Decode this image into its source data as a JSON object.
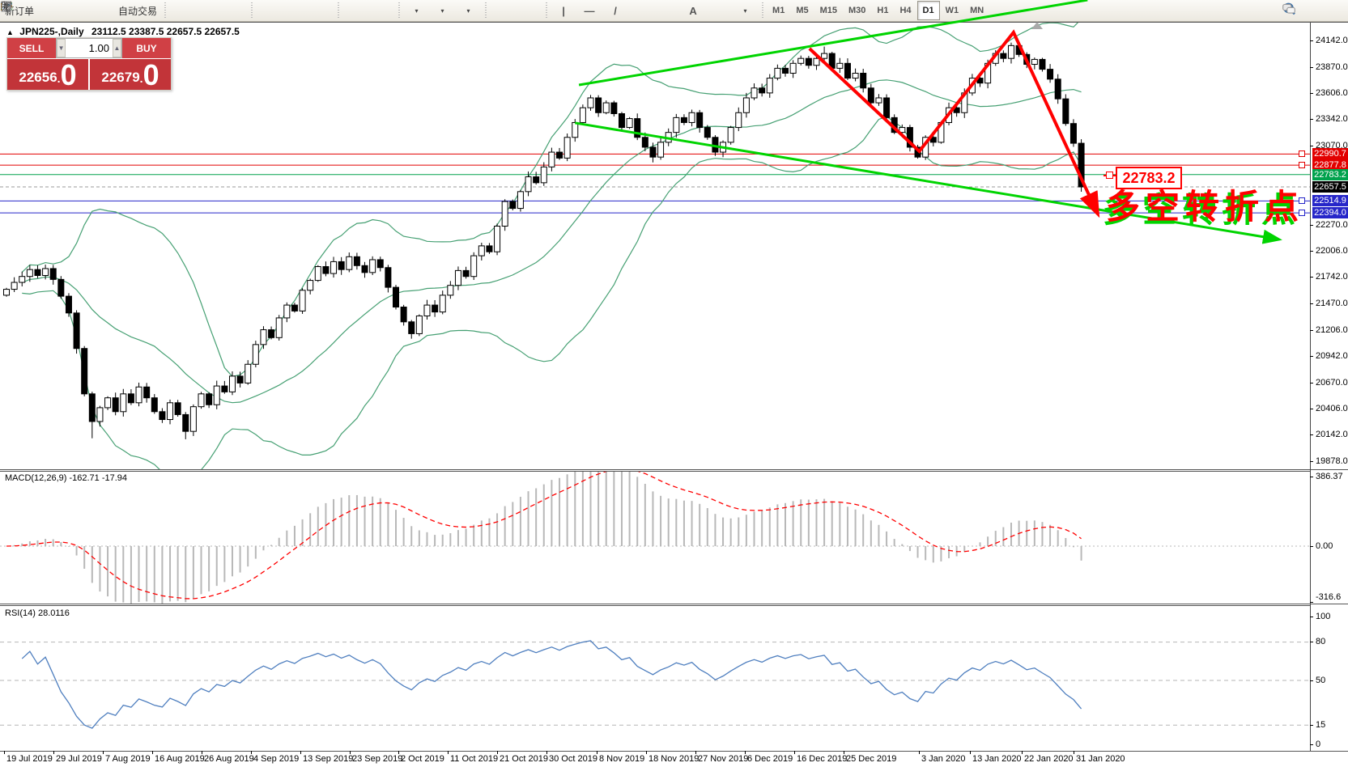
{
  "toolbar": {
    "items": [
      {
        "name": "new-order-button",
        "icon": "new-order",
        "label": "新订单"
      },
      {
        "name": "filter-button",
        "icon": "filter"
      },
      {
        "name": "market-window-button",
        "icon": "window"
      },
      {
        "name": "signal-button",
        "icon": "signal"
      },
      {
        "name": "auto-trading-button",
        "icon": "folder",
        "label": "自动交易"
      },
      {
        "sep": true
      },
      {
        "name": "bar-chart-button",
        "icon": "bars"
      },
      {
        "name": "candle-chart-button",
        "icon": "candles"
      },
      {
        "name": "line-chart-button",
        "icon": "linechart"
      },
      {
        "sep": true
      },
      {
        "name": "zoom-in-button",
        "icon": "zoom-in"
      },
      {
        "name": "zoom-out-button",
        "icon": "zoom-out"
      },
      {
        "name": "tile-windows-button",
        "icon": "tile"
      },
      {
        "sep": true
      },
      {
        "name": "chart-shift-button",
        "icon": "shift"
      },
      {
        "name": "auto-scroll-button",
        "icon": "autoscroll"
      },
      {
        "sep": true
      },
      {
        "name": "indicators-button",
        "icon": "indicators",
        "caret": true
      },
      {
        "name": "periods-button",
        "icon": "clock",
        "caret": true
      },
      {
        "name": "templates-button",
        "icon": "template",
        "caret": true
      },
      {
        "sep": true
      },
      {
        "name": "cursor-button",
        "icon": "cursor"
      },
      {
        "name": "crosshair-button",
        "icon": "crosshair"
      },
      {
        "sep": true
      },
      {
        "name": "vertical-line-button",
        "glyph": "|"
      },
      {
        "name": "horizontal-line-button",
        "glyph": "—"
      },
      {
        "name": "trendline-button",
        "glyph": "/"
      },
      {
        "name": "channel-button",
        "icon": "channel"
      },
      {
        "name": "fibonacci-button",
        "icon": "fibo"
      },
      {
        "name": "text-button",
        "glyph": "A"
      },
      {
        "name": "text-label-button",
        "icon": "label-t"
      },
      {
        "name": "shapes-button",
        "icon": "shapes",
        "caret": true
      },
      {
        "sep": true
      }
    ],
    "timeframes": [
      "M1",
      "M5",
      "M15",
      "M30",
      "H1",
      "H4",
      "D1",
      "W1",
      "MN"
    ],
    "active_timeframe": "D1"
  },
  "chart_header": {
    "collapse": "▲",
    "symbol_period": "JPN225-,Daily",
    "ohlc": "23112.5 23387.5 22657.5 22657.5"
  },
  "trade_panel": {
    "sell_label": "SELL",
    "buy_label": "BUY",
    "volume": "1.00",
    "sell_price_main": "22656",
    "sell_price_big": "0",
    "buy_price_main": "22679",
    "buy_price_big": "0"
  },
  "annotations": {
    "price_label": "22783.2",
    "turning_point_text": "多空转折点"
  },
  "macd_pane": {
    "label": "MACD(12,26,9) -162.71 -17.94",
    "ticks": [
      {
        "v": 386.37,
        "t": "386.37"
      },
      {
        "v": 0,
        "t": "0.00"
      },
      {
        "v": -316.6,
        "t": "-316.6"
      }
    ]
  },
  "rsi_pane": {
    "label": "RSI(14) 28.0116",
    "ticks": [
      {
        "v": 100,
        "t": "100"
      },
      {
        "v": 80,
        "t": "80"
      },
      {
        "v": 50,
        "t": "50"
      },
      {
        "v": 15,
        "t": "15"
      },
      {
        "v": 0,
        "t": "0"
      }
    ],
    "dashed_levels": [
      80,
      50,
      15
    ]
  },
  "price_axis_ticks": [
    "24142.0",
    "23870.0",
    "23606.0",
    "23342.0",
    "23070.0",
    "22270.0",
    "22006.0",
    "21742.0",
    "21470.0",
    "21206.0",
    "20942.0",
    "20670.0",
    "20406.0",
    "20142.0",
    "19878.0"
  ],
  "level_lines": [
    {
      "price": 22990.7,
      "color": "#e20000",
      "style": "solid",
      "handle": true
    },
    {
      "price": 22877.8,
      "color": "#e20000",
      "style": "solid",
      "handle": true
    },
    {
      "price": 22783.2,
      "color": "#00a24d",
      "style": "solid",
      "handle": false
    },
    {
      "price": 22657.5,
      "color": "#9a9a9a",
      "style": "dashed",
      "badge_bg": "#000000",
      "handle": false
    },
    {
      "price": 22514.9,
      "color": "#2626c9",
      "style": "solid",
      "handle": true
    },
    {
      "price": 22394.0,
      "color": "#2626c9",
      "style": "solid",
      "handle": true
    }
  ],
  "date_axis": {
    "labels": [
      "19 Jul 2019",
      "29 Jul 2019",
      "7 Aug 2019",
      "16 Aug 2019",
      "26 Aug 2019",
      "4 Sep 2019",
      "13 Sep 2019",
      "23 Sep 2019",
      "2 Oct 2019",
      "11 Oct 2019",
      "21 Oct 2019",
      "30 Oct 2019",
      "8 Nov 2019",
      "18 Nov 2019",
      "27 Nov 2019",
      "6 Dec 2019",
      "16 Dec 2019",
      "25 Dec 2019",
      "3 Jan 2020",
      "13 Jan 2020",
      "22 Jan 2020",
      "31 Jan 2020"
    ]
  },
  "chart_data": {
    "type": "candlestick",
    "symbol": "JPN225-",
    "timeframe": "Daily",
    "indicators": {
      "bollinger_period": 20,
      "bollinger_deviation": 2,
      "macd": [
        12,
        26,
        9
      ],
      "rsi_period": 14
    },
    "first_open": 21560,
    "closes": [
      21620,
      21690,
      21750,
      21820,
      21760,
      21830,
      21720,
      21550,
      21380,
      21020,
      20560,
      20280,
      20420,
      20520,
      20380,
      20560,
      20470,
      20630,
      20520,
      20380,
      20300,
      20470,
      20350,
      20180,
      20430,
      20560,
      20450,
      20640,
      20580,
      20740,
      20670,
      20860,
      21060,
      21210,
      21130,
      21330,
      21460,
      21400,
      21610,
      21710,
      21850,
      21780,
      21900,
      21820,
      21950,
      21860,
      21790,
      21920,
      21840,
      21640,
      21440,
      21290,
      21170,
      21350,
      21460,
      21390,
      21560,
      21660,
      21810,
      21750,
      21960,
      22060,
      22000,
      22260,
      22510,
      22440,
      22610,
      22760,
      22700,
      22860,
      23010,
      22950,
      23160,
      23310,
      23460,
      23560,
      23410,
      23510,
      23400,
      23260,
      23350,
      23160,
      23060,
      22960,
      23110,
      23210,
      23360,
      23310,
      23410,
      23260,
      23160,
      23010,
      23110,
      23260,
      23410,
      23560,
      23660,
      23610,
      23760,
      23860,
      23810,
      23910,
      23960,
      23890,
      23960,
      24010,
      23860,
      23910,
      23760,
      23810,
      23660,
      23510,
      23560,
      23360,
      23210,
      23260,
      23060,
      22960,
      23160,
      23110,
      23310,
      23460,
      23410,
      23610,
      23760,
      23710,
      23910,
      24010,
      23960,
      24090,
      24000,
      23900,
      23950,
      23850,
      23750,
      23550,
      23300,
      23100,
      22657.5
    ],
    "low_overrides": {
      "11": 20110,
      "23": 20100
    },
    "high_overrides": {
      "105": 24080,
      "129": 24120
    },
    "last_bar": {
      "open": 23112.5,
      "high": 23387.5,
      "low": 22657.5,
      "close": 22657.5
    },
    "trend_lines": [
      {
        "name": "rising-support-trendline",
        "color": "#00d400",
        "width": 3,
        "arrow": false,
        "points_bar_price": [
          [
            73.5,
            23691
          ],
          [
            138.8,
            24552
          ]
        ]
      },
      {
        "name": "falling-resistance-trendline",
        "color": "#00d400",
        "width": 3,
        "arrow": true,
        "points_bar_price": [
          [
            73,
            23306
          ],
          [
            163.2,
            22128
          ]
        ]
      },
      {
        "name": "red-swing-zigzag",
        "color": "#ff0000",
        "width": 4,
        "arrow": true,
        "points_bar_price": [
          [
            103.1,
            24060
          ],
          [
            117.2,
            23019
          ],
          [
            129.3,
            24224
          ],
          [
            140,
            22404
          ]
        ]
      }
    ]
  }
}
